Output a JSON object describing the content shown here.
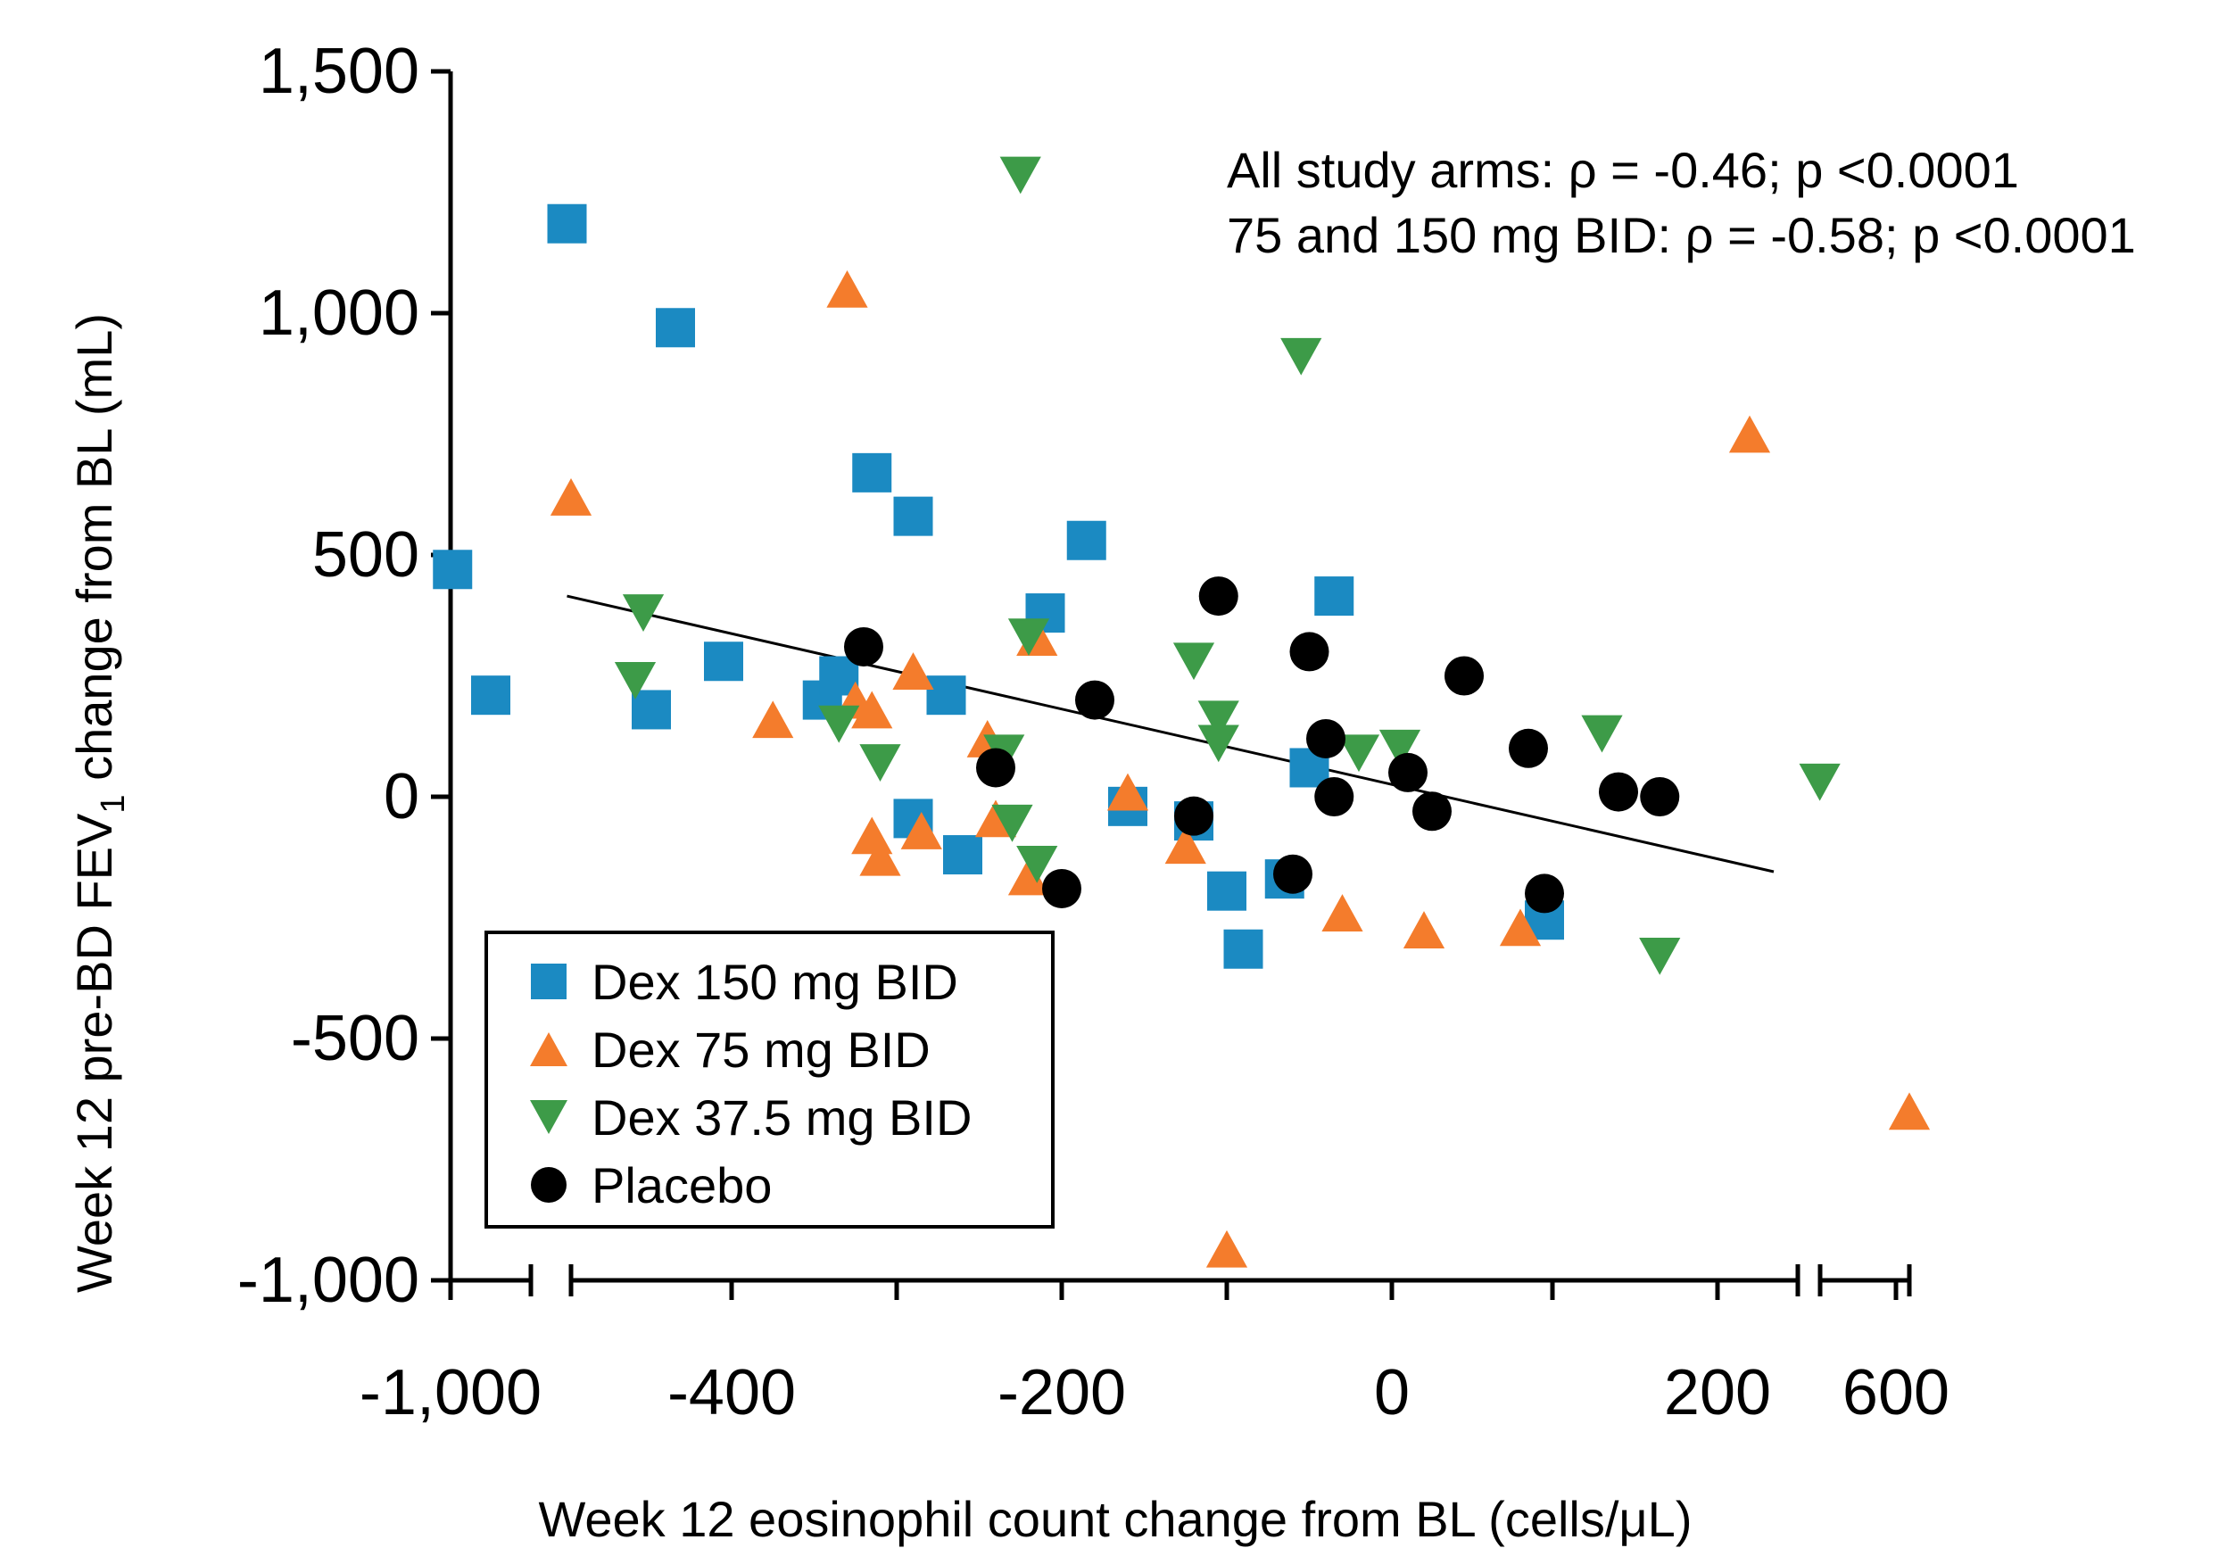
{
  "chart_data": {
    "type": "scatter",
    "ylabel": "Week 12 pre-BD FEV",
    "ylabel_sub": "1",
    "ylabel_tail": " change from BL (mL)",
    "xlabel": "Week 12 eosinophil count change from BL (cells/μL)",
    "ylim": [
      -1000,
      1500
    ],
    "y_ticks": [
      {
        "value": 1500,
        "label": "1,500"
      },
      {
        "value": 1000,
        "label": "1,000"
      },
      {
        "value": 500,
        "label": "500"
      },
      {
        "value": 0,
        "label": "0"
      },
      {
        "value": -500,
        "label": "-500"
      },
      {
        "value": -1000,
        "label": "-1,000"
      }
    ],
    "x_axis": {
      "broken": true,
      "segments": [
        {
          "range": [
            -1000,
            -600
          ]
        },
        {
          "range": [
            -500,
            250
          ]
        },
        {
          "range": [
            580,
            620
          ]
        }
      ],
      "tick_values": [
        -1000,
        -600,
        -500,
        -400,
        -300,
        -200,
        -100,
        0,
        100,
        200,
        250,
        580,
        600,
        620
      ],
      "labeled_ticks": [
        {
          "value": -1000,
          "label": "-1,000"
        },
        {
          "value": -400,
          "label": "-400"
        },
        {
          "value": -200,
          "label": "-200"
        },
        {
          "value": 0,
          "label": "0"
        },
        {
          "value": 200,
          "label": "200"
        },
        {
          "value": 600,
          "label": "600"
        }
      ]
    },
    "annotations": [
      "All study arms: ρ = -0.46; p <0.0001",
      "75 and 150 mg BID: ρ = -0.58; p <0.0001"
    ],
    "trendline": {
      "x": [
        -510,
        235
      ],
      "y": [
        415,
        -155
      ],
      "color": "#000000"
    },
    "legend_position": "bottom-left",
    "series": [
      {
        "name": "Dex 150 mg BID",
        "marker": "square",
        "color": "#1b8ac2",
        "points": [
          [
            -990,
            470
          ],
          [
            -800,
            210
          ],
          [
            -510,
            1185
          ],
          [
            -435,
            970
          ],
          [
            -450,
            180
          ],
          [
            -405,
            280
          ],
          [
            -345,
            200
          ],
          [
            -335,
            250
          ],
          [
            -315,
            670
          ],
          [
            -290,
            580
          ],
          [
            -290,
            -45
          ],
          [
            -270,
            210
          ],
          [
            -260,
            -120
          ],
          [
            -210,
            380
          ],
          [
            -185,
            530
          ],
          [
            -160,
            -20
          ],
          [
            -120,
            -50
          ],
          [
            -100,
            -195
          ],
          [
            -90,
            -315
          ],
          [
            -65,
            -170
          ],
          [
            -50,
            60
          ],
          [
            -35,
            415
          ],
          [
            95,
            -255
          ]
        ]
      },
      {
        "name": "Dex 75 mg BID",
        "marker": "triangle-up",
        "color": "#f47c2c",
        "points": [
          [
            -500,
            620
          ],
          [
            -330,
            1050
          ],
          [
            -375,
            160
          ],
          [
            -325,
            200
          ],
          [
            -315,
            180
          ],
          [
            -315,
            -80
          ],
          [
            -310,
            -125
          ],
          [
            -290,
            260
          ],
          [
            -285,
            -70
          ],
          [
            -245,
            120
          ],
          [
            -240,
            -45
          ],
          [
            -220,
            -165
          ],
          [
            -215,
            330
          ],
          [
            -160,
            10
          ],
          [
            -125,
            -100
          ],
          [
            -100,
            -935
          ],
          [
            -30,
            -240
          ],
          [
            20,
            -275
          ],
          [
            80,
            -270
          ],
          [
            220,
            750
          ],
          [
            620,
            -650
          ]
        ]
      },
      {
        "name": "Dex 37.5 mg BID",
        "marker": "triangle-down",
        "color": "#3d9b48",
        "points": [
          [
            -455,
            380
          ],
          [
            -460,
            240
          ],
          [
            -335,
            150
          ],
          [
            -310,
            70
          ],
          [
            -235,
            90
          ],
          [
            -230,
            -55
          ],
          [
            -215,
            -140
          ],
          [
            -225,
            1285
          ],
          [
            -220,
            330
          ],
          [
            -120,
            280
          ],
          [
            -105,
            160
          ],
          [
            -105,
            110
          ],
          [
            -55,
            910
          ],
          [
            -20,
            90
          ],
          [
            5,
            100
          ],
          [
            130,
            130
          ],
          [
            165,
            -330
          ],
          [
            575,
            30
          ]
        ]
      },
      {
        "name": "Placebo",
        "marker": "circle",
        "color": "#000000",
        "points": [
          [
            -320,
            310
          ],
          [
            -240,
            60
          ],
          [
            -200,
            -190
          ],
          [
            -180,
            200
          ],
          [
            -120,
            -40
          ],
          [
            -105,
            415
          ],
          [
            -60,
            -160
          ],
          [
            -50,
            300
          ],
          [
            -40,
            120
          ],
          [
            -35,
            0
          ],
          [
            10,
            50
          ],
          [
            25,
            -30
          ],
          [
            45,
            250
          ],
          [
            85,
            100
          ],
          [
            95,
            -200
          ],
          [
            140,
            10
          ],
          [
            165,
            0
          ]
        ]
      }
    ]
  }
}
